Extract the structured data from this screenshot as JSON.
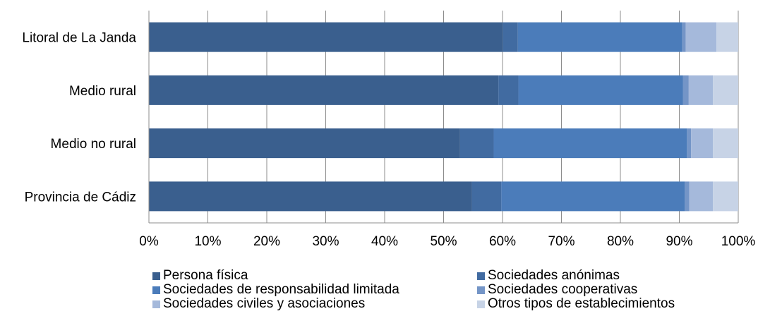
{
  "chart_data": {
    "type": "bar",
    "orientation": "horizontal",
    "stacked": "percent",
    "categories": [
      "Litoral de La Janda",
      "Medio rural",
      "Medio no rural",
      "Provincia de Cádiz"
    ],
    "xlim": [
      0,
      100
    ],
    "x_ticks": [
      "0%",
      "10%",
      "20%",
      "30%",
      "40%",
      "50%",
      "60%",
      "70%",
      "80%",
      "90%",
      "100%"
    ],
    "grid": true,
    "legend_position": "bottom",
    "series": [
      {
        "name": "Persona física",
        "color": "#3a5f8e",
        "values": [
          60.1,
          59.3,
          52.8,
          54.8
        ]
      },
      {
        "name": "Sociedades anónimas",
        "color": "#416ba1",
        "values": [
          2.5,
          3.4,
          5.7,
          5.0
        ]
      },
      {
        "name": "Sociedades de responsabilidad limitada",
        "color": "#4b7cba",
        "values": [
          27.9,
          27.9,
          32.8,
          31.1
        ]
      },
      {
        "name": "Sociedades cooperativas",
        "color": "#7495c7",
        "values": [
          0.6,
          1.0,
          0.7,
          0.8
        ]
      },
      {
        "name": "Sociedades civiles y asociaciones",
        "color": "#a5b9db",
        "values": [
          5.2,
          4.1,
          3.7,
          4.0
        ]
      },
      {
        "name": "Otros tipos de establecimientos",
        "color": "#c7d3e6",
        "values": [
          3.7,
          4.3,
          4.3,
          4.3
        ]
      }
    ]
  }
}
